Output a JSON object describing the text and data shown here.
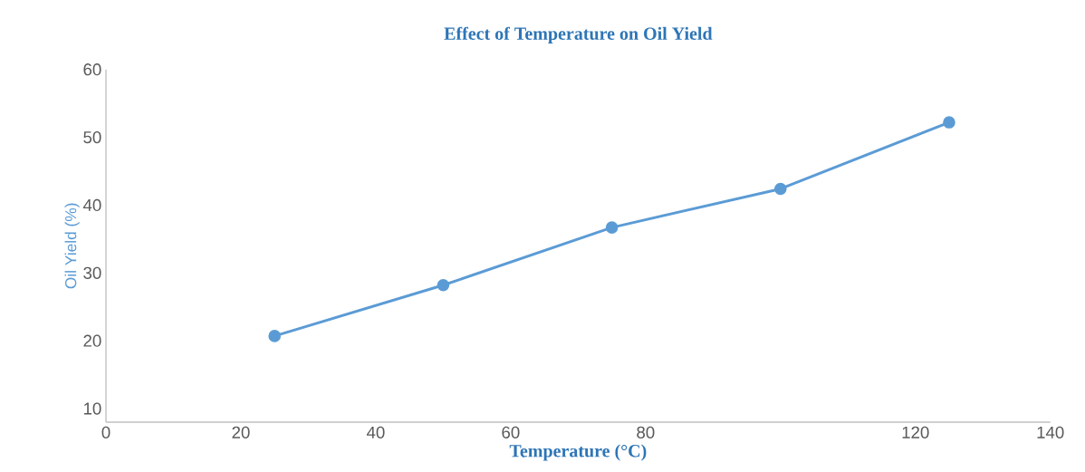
{
  "chart_data": {
    "type": "line",
    "title": "Effect of Temperature on Oil Yield",
    "xlabel": "Temperature (°C)",
    "ylabel": "Oil Yield (%)",
    "x": [
      25,
      50,
      75,
      100,
      125
    ],
    "series": [
      {
        "color": "#5b9bd5",
        "values": [
          20.7,
          28.2,
          36.7,
          42.4,
          52.2
        ]
      }
    ],
    "xlim": [
      0,
      140
    ],
    "xticks": [
      0,
      20,
      40,
      60,
      80,
      120,
      140
    ],
    "ylim": [
      8,
      60
    ],
    "yticks": [
      10,
      20,
      30,
      40,
      50,
      60
    ],
    "marker": "circle",
    "line_style": "solid"
  }
}
